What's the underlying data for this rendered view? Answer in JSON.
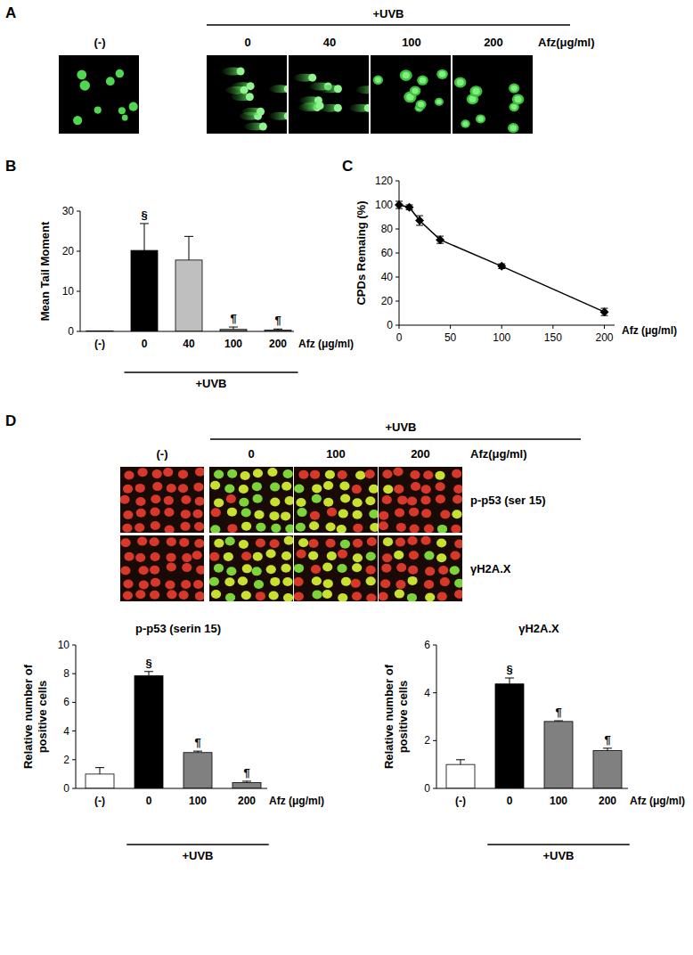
{
  "chart_data": [
    {
      "type": "bar",
      "categories": [
        "(-)",
        "0",
        "40",
        "100",
        "200"
      ],
      "values": [
        0.1,
        20.2,
        17.8,
        0.5,
        0.3
      ],
      "errors": [
        null,
        6.7,
        5.9,
        0.6,
        0.3
      ],
      "significance": [
        null,
        "§",
        null,
        "¶",
        "¶"
      ],
      "colors": [
        "#ffffff",
        "#000000",
        "#bfbfbf",
        "#808080",
        "#808080"
      ],
      "y_label": "Mean Tail Moment",
      "x_label": "Afz (μg/ml)",
      "group_label": "+UVB",
      "ylim": [
        0,
        30
      ],
      "yticks": [
        0,
        10,
        20,
        30
      ]
    },
    {
      "type": "line",
      "x": [
        0,
        10,
        20,
        40,
        100,
        200
      ],
      "values": [
        100,
        98,
        87,
        71,
        49,
        11
      ],
      "errors": [
        3,
        2,
        4,
        3,
        2,
        3
      ],
      "color": "#000000",
      "marker": "diamond",
      "y_label": "CPDs Remaing (%)",
      "x_label": "Afz (μg/ml)",
      "xlim": [
        0,
        210
      ],
      "xticks": [
        0,
        50,
        100,
        150,
        200
      ],
      "ylim": [
        0,
        120
      ],
      "yticks": [
        0,
        20,
        40,
        60,
        80,
        100,
        120
      ]
    },
    {
      "type": "bar",
      "title": "p-p53 (serin 15)",
      "categories": [
        "(-)",
        "0",
        "100",
        "200"
      ],
      "values": [
        1.0,
        7.85,
        2.5,
        0.4
      ],
      "errors": [
        0.45,
        0.3,
        0.1,
        0.1
      ],
      "significance": [
        null,
        "§",
        "¶",
        "¶"
      ],
      "colors": [
        "#ffffff",
        "#000000",
        "#808080",
        "#808080"
      ],
      "y_label": "Relative number of positive cells",
      "x_label": "Afz (μg/ml)",
      "group_label": "+UVB",
      "ylim": [
        0,
        10
      ],
      "yticks": [
        0,
        2,
        4,
        6,
        8,
        10
      ]
    },
    {
      "type": "bar",
      "title": "γH2A.X",
      "categories": [
        "(-)",
        "0",
        "100",
        "200"
      ],
      "values": [
        1.0,
        4.37,
        2.8,
        1.58
      ],
      "errors": [
        0.2,
        0.25,
        0.03,
        0.1
      ],
      "significance": [
        null,
        "§",
        "¶",
        "¶"
      ],
      "colors": [
        "#ffffff",
        "#000000",
        "#808080",
        "#808080"
      ],
      "y_label": "Relative number of positive cells",
      "x_label": "Afz (μg/ml)",
      "group_label": "+UVB",
      "ylim": [
        0,
        6
      ],
      "yticks": [
        0,
        2,
        4,
        6
      ]
    }
  ],
  "figure": {
    "panel_labels": [
      "A",
      "B",
      "C",
      "D"
    ],
    "panel_a": {
      "group_label": "+UVB",
      "control_label": "(-)",
      "doses": [
        0,
        40,
        100,
        200
      ],
      "unit_label": "Afz(μg/ml)"
    },
    "panel_d": {
      "group_label": "+UVB",
      "control_label": "(-)",
      "doses": [
        0,
        100,
        200
      ],
      "unit_label": "Afz(μg/ml)",
      "rows": [
        "p-p53 (ser 15)",
        "γH2A.X"
      ]
    }
  }
}
